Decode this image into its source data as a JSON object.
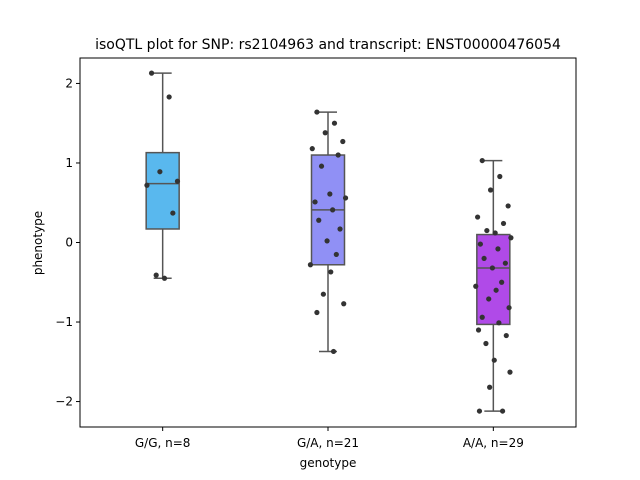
{
  "chart_data": {
    "type": "box",
    "title": "isoQTL plot for SNP: rs2104963 and transcript: ENST00000476054",
    "xlabel": "genotype",
    "ylabel": "phenotype",
    "ylim": [
      -2.32,
      2.32
    ],
    "yticks": [
      2,
      1,
      0,
      -1,
      -2
    ],
    "ytick_labels": [
      "2",
      "1",
      "0",
      "−1",
      "−2"
    ],
    "categories": [
      "G/G, n=8",
      "G/A, n=21",
      "A/A, n=29"
    ],
    "boxes": [
      {
        "label": "G/G, n=8",
        "color": "#59b8ee",
        "whisker_low": -0.45,
        "q1": 0.17,
        "median": 0.74,
        "q3": 1.13,
        "whisker_high": 2.13,
        "points": [
          2.13,
          1.83,
          0.89,
          0.77,
          0.72,
          0.37,
          -0.41,
          -0.45
        ]
      },
      {
        "label": "G/A, n=21",
        "color": "#9090f5",
        "whisker_low": -1.37,
        "q1": -0.28,
        "median": 0.41,
        "q3": 1.1,
        "whisker_high": 1.64,
        "points": [
          1.64,
          1.5,
          1.38,
          1.27,
          1.18,
          1.1,
          0.96,
          0.61,
          0.56,
          0.51,
          0.41,
          0.28,
          0.17,
          0.02,
          -0.15,
          -0.28,
          -0.37,
          -0.65,
          -0.77,
          -0.88,
          -1.37
        ]
      },
      {
        "label": "A/A, n=29",
        "color": "#b04ae8",
        "whisker_low": -2.12,
        "q1": -1.03,
        "median": -0.32,
        "q3": 0.1,
        "whisker_high": 1.03,
        "points": [
          1.03,
          0.83,
          0.66,
          0.46,
          0.32,
          0.24,
          0.15,
          0.12,
          0.06,
          -0.02,
          -0.08,
          -0.2,
          -0.26,
          -0.32,
          -0.5,
          -0.55,
          -0.6,
          -0.71,
          -0.82,
          -0.94,
          -1.01,
          -1.1,
          -1.17,
          -1.27,
          -1.48,
          -1.63,
          -1.82,
          -2.12,
          -2.12
        ]
      }
    ],
    "point_color": "#333333",
    "grid": false,
    "legend": "none"
  }
}
